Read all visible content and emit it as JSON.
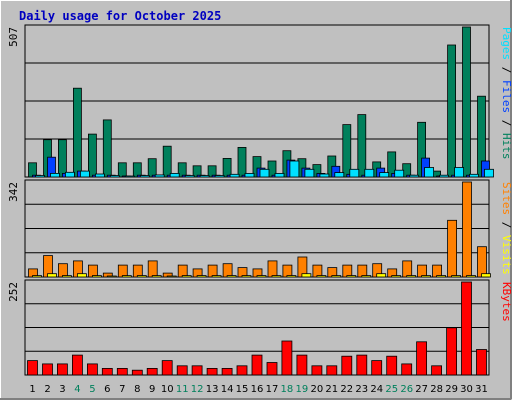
{
  "chart_data": {
    "type": "bar",
    "title": "Daily usage for October 2025",
    "days": [
      "1",
      "2",
      "3",
      "4",
      "5",
      "6",
      "7",
      "8",
      "9",
      "10",
      "11",
      "12",
      "13",
      "14",
      "15",
      "16",
      "17",
      "18",
      "19",
      "20",
      "21",
      "22",
      "23",
      "24",
      "25",
      "26",
      "27",
      "28",
      "29",
      "30",
      "31"
    ],
    "weekend_days": [
      "4",
      "5",
      "11",
      "12",
      "18",
      "19",
      "25",
      "26"
    ],
    "colors": {
      "hits": "#00805c",
      "files": "#0040ff",
      "pages": "#00e0ff",
      "visits": "#ffff00",
      "sites": "#ff8000",
      "kbytes": "#ff0000",
      "weekend_label": "#00805c",
      "weekday_label": "#000000",
      "plot_bg": "#c0c0c0",
      "frame_bg": "#c0c0c0"
    },
    "panels": [
      {
        "id": "hits-files-pages",
        "ymax": 507,
        "side_label": [
          {
            "text": "Pages",
            "color": "#00e0ff"
          },
          {
            "text": " / ",
            "color": "#000000"
          },
          {
            "text": "Files",
            "color": "#0040ff"
          },
          {
            "text": " / ",
            "color": "#000000"
          },
          {
            "text": "Hits",
            "color": "#00805c"
          }
        ],
        "series": [
          {
            "key": "hits",
            "color": "#00805c",
            "values": [
              48,
              126,
              126,
              300,
              145,
              193,
              48,
              48,
              62,
              104,
              48,
              38,
              38,
              63,
              100,
              69,
              54,
              89,
              62,
              42,
              71,
              177,
              211,
              51,
              85,
              45,
              185,
              20,
              446,
              507,
              273
            ]
          },
          {
            "key": "files",
            "color": "#0040ff",
            "values": [
              6,
              67,
              12,
              20,
              6,
              6,
              3,
              6,
              6,
              6,
              6,
              6,
              6,
              6,
              6,
              30,
              6,
              57,
              30,
              12,
              36,
              9,
              6,
              30,
              12,
              6,
              64,
              3,
              6,
              6,
              54
            ]
          },
          {
            "key": "pages",
            "color": "#00e0ff",
            "values": [
              5,
              12,
              16,
              20,
              10,
              5,
              3,
              5,
              7,
              12,
              5,
              5,
              5,
              9,
              12,
              26,
              12,
              54,
              26,
              10,
              15,
              26,
              26,
              15,
              23,
              6,
              32,
              6,
              32,
              9,
              26
            ]
          }
        ]
      },
      {
        "id": "visits-sites",
        "ymax": 342,
        "side_label": [
          {
            "text": "Sites",
            "color": "#ff8000"
          },
          {
            "text": " / ",
            "color": "#000000"
          },
          {
            "text": "Visits",
            "color": "#ffff00"
          }
        ],
        "series": [
          {
            "key": "sites",
            "color": "#ff8000",
            "values": [
              29,
              77,
              48,
              58,
              43,
              14,
              43,
              43,
              58,
              14,
              43,
              29,
              43,
              48,
              34,
              29,
              58,
              43,
              72,
              43,
              34,
              43,
              43,
              48,
              29,
              58,
              43,
              43,
              204,
              342,
              109
            ]
          },
          {
            "key": "visits",
            "color": "#ffff00",
            "values": [
              5,
              12,
              5,
              12,
              5,
              2,
              5,
              5,
              5,
              2,
              5,
              5,
              5,
              5,
              5,
              5,
              5,
              5,
              12,
              5,
              5,
              5,
              5,
              12,
              5,
              5,
              5,
              5,
              5,
              5,
              12
            ]
          }
        ]
      },
      {
        "id": "kbytes",
        "ymax": 252,
        "side_label": [
          {
            "text": "KBytes",
            "color": "#ff0000"
          }
        ],
        "series": [
          {
            "key": "kbytes",
            "color": "#ff0000",
            "values": [
              39,
              30,
              30,
              54,
              30,
              18,
              18,
              13,
              18,
              39,
              25,
              25,
              18,
              18,
              25,
              54,
              34,
              92,
              54,
              25,
              25,
              51,
              54,
              39,
              51,
              30,
              90,
              25,
              128,
              252,
              69
            ]
          }
        ]
      }
    ]
  }
}
